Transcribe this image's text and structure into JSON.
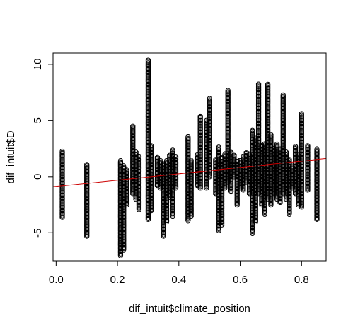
{
  "chart_data": {
    "type": "scatter",
    "title": "",
    "xlabel": "dif_intuit$climate_position",
    "ylabel": "dif_intuit$D",
    "xlim": [
      -0.01,
      0.88
    ],
    "ylim": [
      -7.5,
      11.0
    ],
    "x_ticks": [
      0.0,
      0.2,
      0.4,
      0.6,
      0.8
    ],
    "y_ticks": [
      -5,
      0,
      5,
      10
    ],
    "x_tick_labels": [
      "0.0",
      "0.2",
      "0.4",
      "0.6",
      "0.8"
    ],
    "y_tick_labels": [
      "-5",
      "0",
      "5",
      "10"
    ],
    "grid": false,
    "legend": "none",
    "point_color": "#000000",
    "point_style": "open-circle",
    "columns": [
      {
        "x": 0.02,
        "ymin": -3.6,
        "ymax": 2.3
      },
      {
        "x": 0.1,
        "ymin": -5.3,
        "ymax": 1.1
      },
      {
        "x": 0.21,
        "ymin": -7.0,
        "ymax": 1.5
      },
      {
        "x": 0.22,
        "ymin": -6.5,
        "ymax": 1.0
      },
      {
        "x": 0.23,
        "ymin": -2.5,
        "ymax": 0.7
      },
      {
        "x": 0.25,
        "ymin": -1.5,
        "ymax": 4.5
      },
      {
        "x": 0.26,
        "ymin": -2.0,
        "ymax": 2.2
      },
      {
        "x": 0.27,
        "ymin": -2.9,
        "ymax": 1.8
      },
      {
        "x": 0.3,
        "ymin": -3.8,
        "ymax": 10.4
      },
      {
        "x": 0.31,
        "ymin": -3.0,
        "ymax": 2.8
      },
      {
        "x": 0.33,
        "ymin": -0.8,
        "ymax": 1.8
      },
      {
        "x": 0.34,
        "ymin": -1.0,
        "ymax": 1.5
      },
      {
        "x": 0.35,
        "ymin": -5.3,
        "ymax": 1.2
      },
      {
        "x": 0.36,
        "ymin": -4.0,
        "ymax": 1.5
      },
      {
        "x": 0.37,
        "ymin": -1.8,
        "ymax": 2.0
      },
      {
        "x": 0.38,
        "ymin": -3.5,
        "ymax": 2.4
      },
      {
        "x": 0.39,
        "ymin": -1.0,
        "ymax": 1.8
      },
      {
        "x": 0.43,
        "ymin": -3.9,
        "ymax": 3.6
      },
      {
        "x": 0.44,
        "ymin": -3.5,
        "ymax": 1.5
      },
      {
        "x": 0.46,
        "ymin": -0.8,
        "ymax": 2.0
      },
      {
        "x": 0.47,
        "ymin": -1.0,
        "ymax": 5.4
      },
      {
        "x": 0.49,
        "ymin": -1.0,
        "ymax": 5.0
      },
      {
        "x": 0.5,
        "ymin": 0.0,
        "ymax": 7.0
      },
      {
        "x": 0.52,
        "ymin": -1.5,
        "ymax": 1.5
      },
      {
        "x": 0.53,
        "ymin": -4.8,
        "ymax": 2.7
      },
      {
        "x": 0.54,
        "ymin": -4.3,
        "ymax": 1.8
      },
      {
        "x": 0.55,
        "ymin": -1.0,
        "ymax": 2.0
      },
      {
        "x": 0.56,
        "ymin": -0.5,
        "ymax": 7.7
      },
      {
        "x": 0.57,
        "ymin": -1.3,
        "ymax": 2.2
      },
      {
        "x": 0.58,
        "ymin": 0.0,
        "ymax": 2.0
      },
      {
        "x": 0.59,
        "ymin": -2.5,
        "ymax": 1.5
      },
      {
        "x": 0.6,
        "ymin": -1.0,
        "ymax": 1.5
      },
      {
        "x": 0.61,
        "ymin": -1.2,
        "ymax": 1.8
      },
      {
        "x": 0.62,
        "ymin": -0.5,
        "ymax": 2.2
      },
      {
        "x": 0.63,
        "ymin": -1.5,
        "ymax": 2.0
      },
      {
        "x": 0.64,
        "ymin": -5.0,
        "ymax": 4.2
      },
      {
        "x": 0.65,
        "ymin": -4.0,
        "ymax": 3.5
      },
      {
        "x": 0.66,
        "ymin": -1.5,
        "ymax": 8.3
      },
      {
        "x": 0.67,
        "ymin": -2.5,
        "ymax": 2.8
      },
      {
        "x": 0.68,
        "ymin": -3.3,
        "ymax": 3.0
      },
      {
        "x": 0.69,
        "ymin": -2.0,
        "ymax": 8.2
      },
      {
        "x": 0.7,
        "ymin": -2.5,
        "ymax": 3.8
      },
      {
        "x": 0.71,
        "ymin": -1.5,
        "ymax": 2.5
      },
      {
        "x": 0.72,
        "ymin": -2.0,
        "ymax": 3.0
      },
      {
        "x": 0.73,
        "ymin": -2.3,
        "ymax": 2.5
      },
      {
        "x": 0.74,
        "ymin": -1.5,
        "ymax": 7.3
      },
      {
        "x": 0.75,
        "ymin": -2.0,
        "ymax": 2.2
      },
      {
        "x": 0.76,
        "ymin": -3.3,
        "ymax": 1.5
      },
      {
        "x": 0.77,
        "ymin": -1.0,
        "ymax": 1.0
      },
      {
        "x": 0.78,
        "ymin": -1.5,
        "ymax": 2.8
      },
      {
        "x": 0.79,
        "ymin": -2.5,
        "ymax": 2.0
      },
      {
        "x": 0.8,
        "ymin": -2.7,
        "ymax": 5.6
      },
      {
        "x": 0.82,
        "ymin": -1.2,
        "ymax": 2.8
      },
      {
        "x": 0.85,
        "ymin": -3.8,
        "ymax": 2.5
      }
    ],
    "regression_line": {
      "color": "#cc0000",
      "x": [
        -0.01,
        0.88
      ],
      "y": [
        -0.9,
        1.6
      ]
    }
  }
}
